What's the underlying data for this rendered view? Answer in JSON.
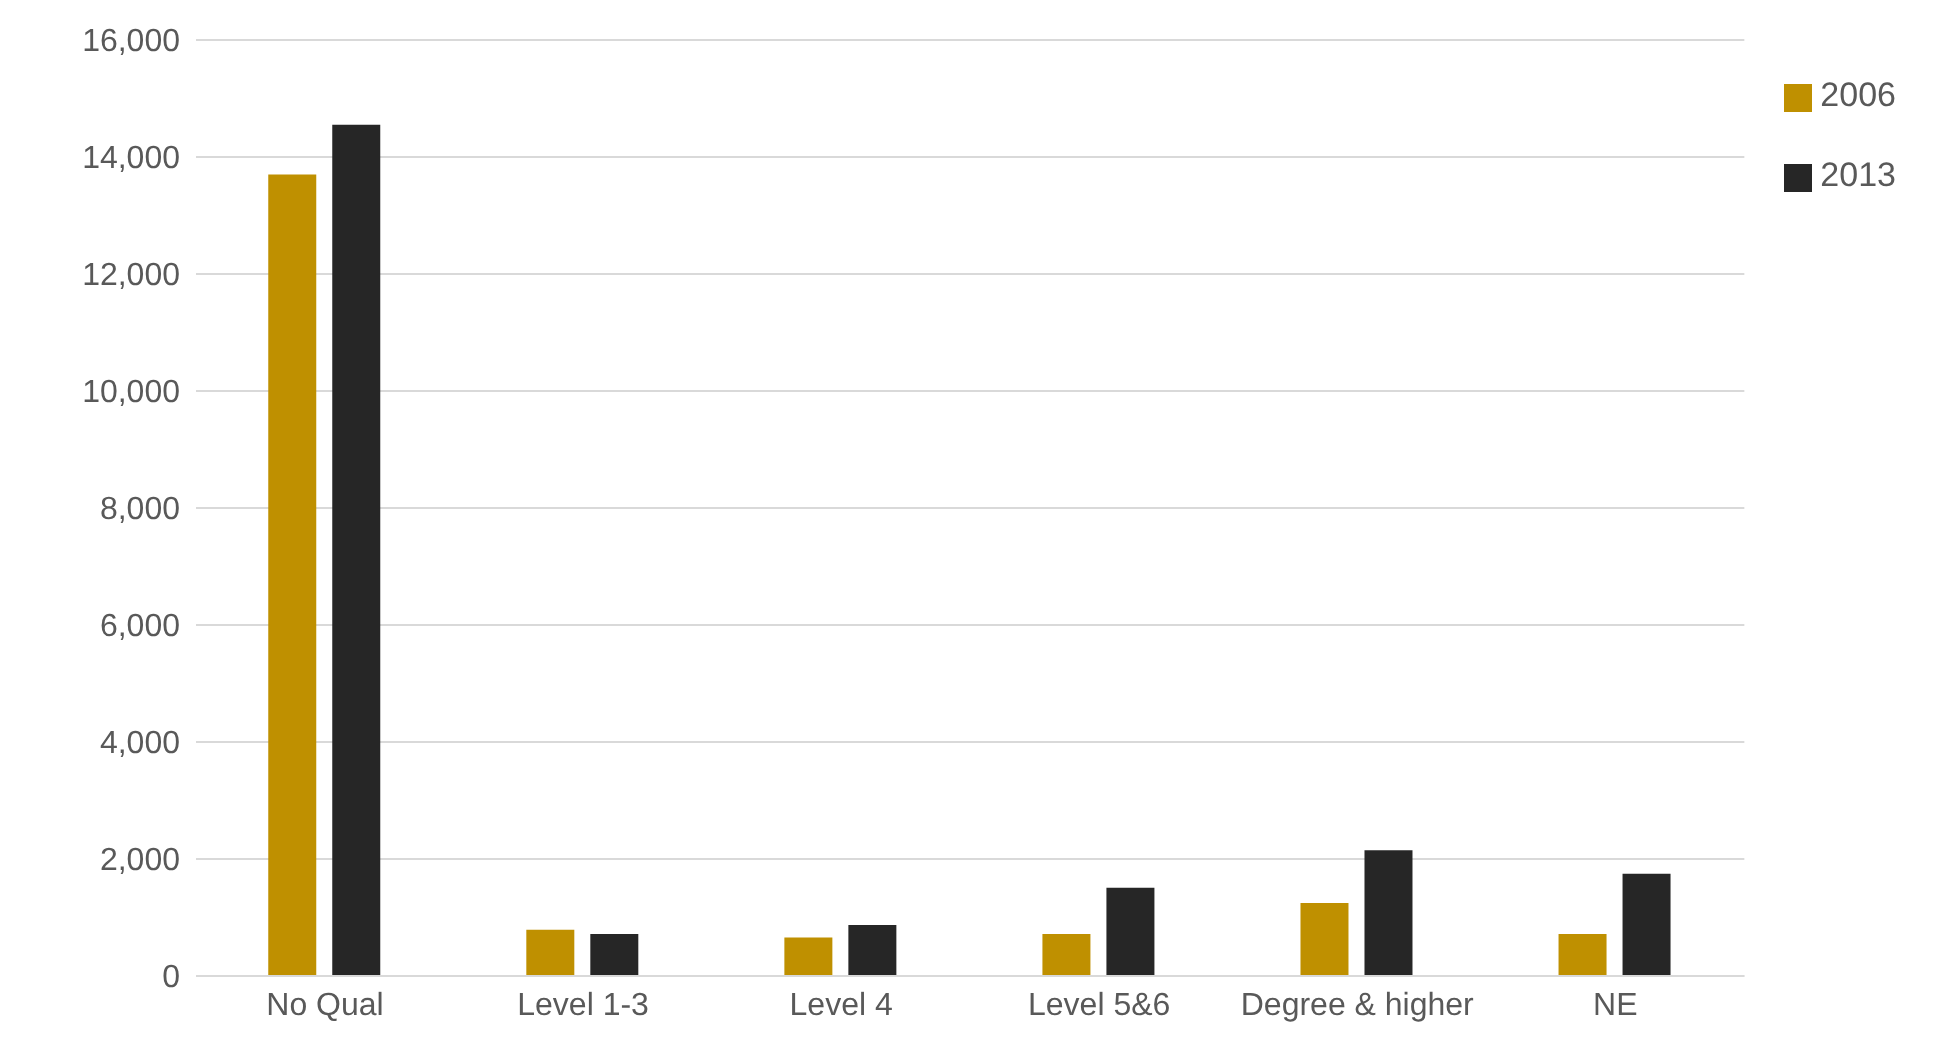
{
  "chart_data": {
    "type": "bar",
    "categories": [
      "No Qual",
      "Level 1-3",
      "Level 4",
      "Level 5&6",
      "Degree & higher",
      "NE"
    ],
    "series": [
      {
        "name": "2006",
        "color": "#bf9000",
        "values": [
          13700,
          790,
          660,
          720,
          1250,
          720
        ]
      },
      {
        "name": "2013",
        "color": "#262626",
        "values": [
          14550,
          720,
          870,
          1510,
          2150,
          1750
        ]
      }
    ],
    "ylim": [
      0,
      16000
    ],
    "yticks": [
      {
        "value": 0,
        "label": "0"
      },
      {
        "value": 2000,
        "label": "2,000"
      },
      {
        "value": 4000,
        "label": "4,000"
      },
      {
        "value": 6000,
        "label": "6,000"
      },
      {
        "value": 8000,
        "label": "8,000"
      },
      {
        "value": 10000,
        "label": "10,000"
      },
      {
        "value": 12000,
        "label": "12,000"
      },
      {
        "value": 14000,
        "label": "14,000"
      },
      {
        "value": 16000,
        "label": "16,000"
      }
    ],
    "grid": "y",
    "legend": "top right"
  }
}
